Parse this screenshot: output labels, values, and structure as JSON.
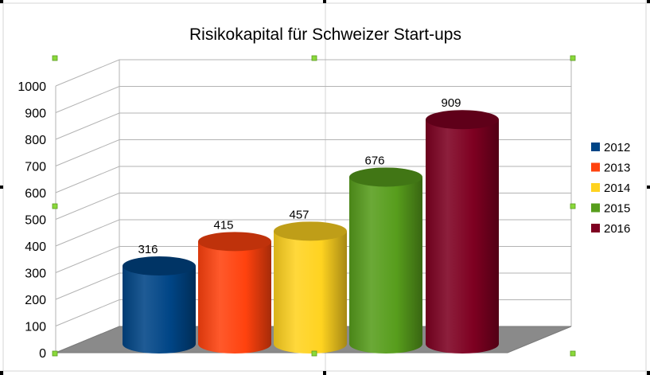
{
  "chart_data": {
    "type": "bar",
    "style": "3d-cylinder",
    "title": "Risikokapital für Schweizer Start-ups",
    "categories": [
      "2012",
      "2013",
      "2014",
      "2015",
      "2016"
    ],
    "values": [
      316,
      415,
      457,
      676,
      909
    ],
    "colors": [
      "#004586",
      "#ff420e",
      "#ffd320",
      "#579d1c",
      "#7e0021"
    ],
    "ylim": [
      0,
      1000
    ],
    "yticks": [
      "0",
      "100",
      "200",
      "300",
      "400",
      "500",
      "600",
      "700",
      "800",
      "900",
      "1000"
    ],
    "grid": true,
    "legend": {
      "position": "right",
      "entries": [
        "2012",
        "2013",
        "2014",
        "2015",
        "2016"
      ]
    },
    "data_labels": [
      "316",
      "415",
      "457",
      "676",
      "909"
    ]
  }
}
